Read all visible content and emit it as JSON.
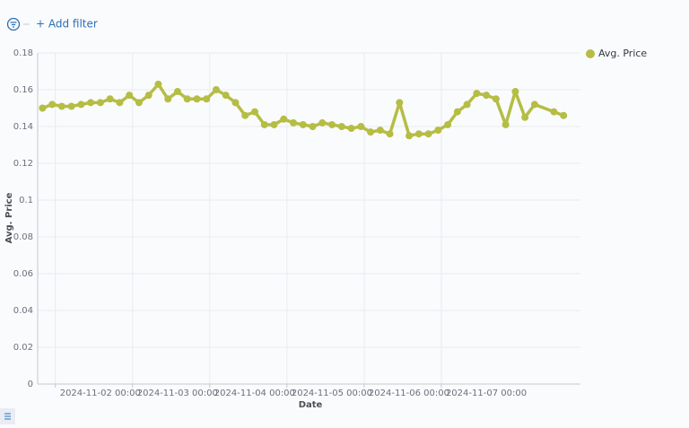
{
  "header": {
    "add_filter": "+ Add filter"
  },
  "chart_data": {
    "type": "line",
    "x_label": "Date",
    "y_label": "Avg. Price",
    "grid": true,
    "legend": "right",
    "x": [
      "2024-11-01 20:00",
      "2024-11-01 23:00",
      "2024-11-02 02:00",
      "2024-11-02 05:00",
      "2024-11-02 08:00",
      "2024-11-02 11:00",
      "2024-11-02 14:00",
      "2024-11-02 17:00",
      "2024-11-02 20:00",
      "2024-11-02 23:00",
      "2024-11-03 02:00",
      "2024-11-03 05:00",
      "2024-11-03 08:00",
      "2024-11-03 11:00",
      "2024-11-03 14:00",
      "2024-11-03 17:00",
      "2024-11-03 20:00",
      "2024-11-03 23:00",
      "2024-11-04 02:00",
      "2024-11-04 05:00",
      "2024-11-04 08:00",
      "2024-11-04 11:00",
      "2024-11-04 14:00",
      "2024-11-04 17:00",
      "2024-11-04 20:00",
      "2024-11-04 23:00",
      "2024-11-05 02:00",
      "2024-11-05 05:00",
      "2024-11-05 08:00",
      "2024-11-05 11:00",
      "2024-11-05 14:00",
      "2024-11-05 17:00",
      "2024-11-05 20:00",
      "2024-11-05 23:00",
      "2024-11-06 02:00",
      "2024-11-06 05:00",
      "2024-11-06 08:00",
      "2024-11-06 11:00",
      "2024-11-06 14:00",
      "2024-11-06 17:00",
      "2024-11-06 20:00",
      "2024-11-06 23:00",
      "2024-11-07 02:00",
      "2024-11-07 05:00",
      "2024-11-07 08:00",
      "2024-11-07 11:00",
      "2024-11-07 14:00",
      "2024-11-07 17:00",
      "2024-11-07 20:00",
      "2024-11-07 23:00",
      "2024-11-08 02:00",
      "2024-11-08 05:00",
      "2024-11-08 11:00",
      "2024-11-08 14:00"
    ],
    "series": [
      {
        "name": "Avg. Price",
        "color": "#b5bd44",
        "values": [
          0.15,
          0.152,
          0.151,
          0.151,
          0.152,
          0.153,
          0.153,
          0.155,
          0.153,
          0.157,
          0.153,
          0.157,
          0.163,
          0.155,
          0.159,
          0.155,
          0.155,
          0.155,
          0.16,
          0.157,
          0.153,
          0.146,
          0.148,
          0.141,
          0.141,
          0.144,
          0.142,
          0.141,
          0.14,
          0.142,
          0.141,
          0.14,
          0.139,
          0.14,
          0.137,
          0.138,
          0.136,
          0.153,
          0.135,
          0.136,
          0.136,
          0.138,
          0.141,
          0.148,
          0.152,
          0.158,
          0.157,
          0.155,
          0.141,
          0.159,
          0.145,
          0.152,
          0.148,
          0.146
        ]
      }
    ],
    "xlim": [
      "2024-11-01 18:30",
      "2024-11-08 19:15"
    ],
    "xticks": [
      "2024-11-02 00:00",
      "2024-11-03 00:00",
      "2024-11-04 00:00",
      "2024-11-05 00:00",
      "2024-11-06 00:00",
      "2024-11-07 00:00"
    ],
    "ylim": [
      0,
      0.18
    ],
    "yticks": [
      0,
      0.02,
      0.04,
      0.06,
      0.08,
      0.1,
      0.12,
      0.14,
      0.16,
      0.18
    ]
  }
}
